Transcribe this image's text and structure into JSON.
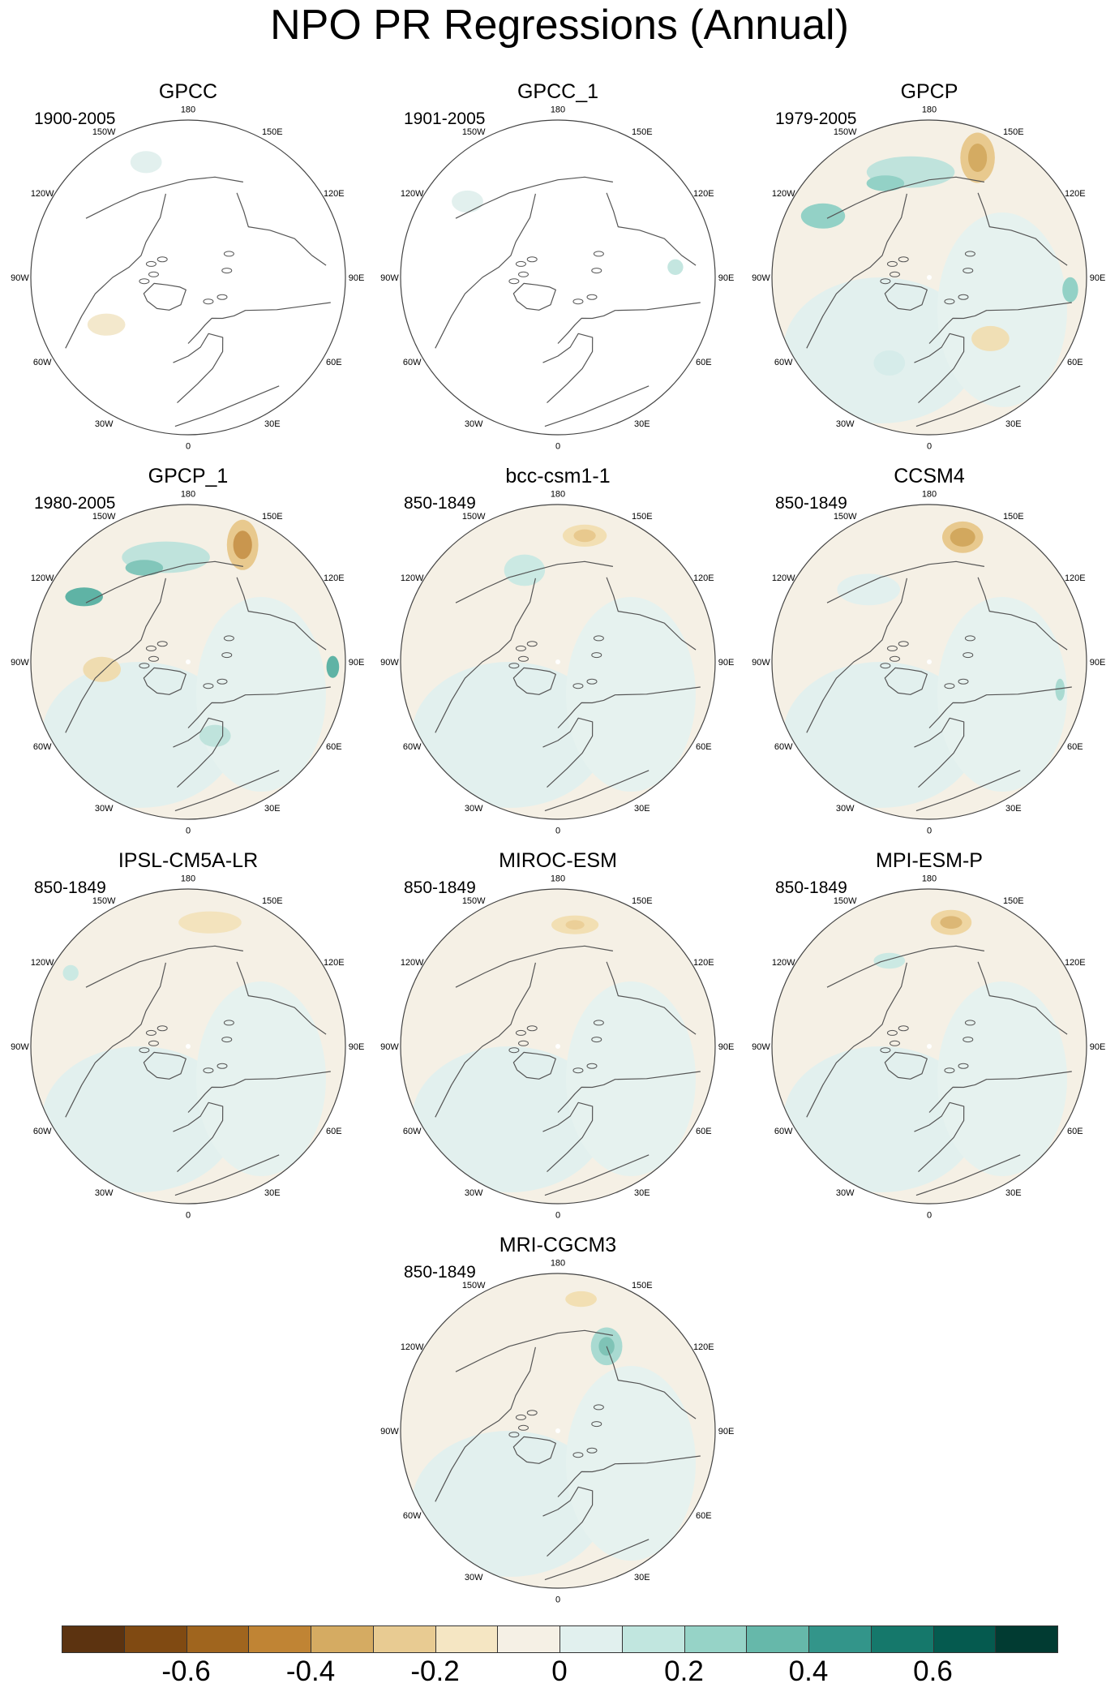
{
  "title": "NPO PR Regressions (Annual)",
  "panels": [
    {
      "name": "GPCC",
      "period": "1900-2005",
      "type": "land",
      "blobs": [
        {
          "lon": 200,
          "r": 0.78,
          "rx": 0.1,
          "ry": 0.07,
          "color": "#e2f0ee"
        },
        {
          "lon": 300,
          "r": 0.6,
          "rx": 0.12,
          "ry": 0.07,
          "color": "#f3e8cc"
        }
      ]
    },
    {
      "name": "GPCC_1",
      "period": "1901-2005",
      "type": "land",
      "blobs": [
        {
          "lon": 230,
          "r": 0.75,
          "rx": 0.1,
          "ry": 0.07,
          "color": "#e2f0ee"
        },
        {
          "lon": 95,
          "r": 0.75,
          "rx": 0.05,
          "ry": 0.05,
          "color": "#c4e6e0"
        }
      ]
    },
    {
      "name": "GPCP",
      "period": "1979-2005",
      "type": "full",
      "blobs": [
        {
          "lon": 158,
          "r": 0.82,
          "rx": 0.11,
          "ry": 0.16,
          "color": "#e8c98e"
        },
        {
          "lon": 158,
          "r": 0.82,
          "rx": 0.06,
          "ry": 0.09,
          "color": "#d4ab62"
        },
        {
          "lon": 190,
          "r": 0.68,
          "rx": 0.28,
          "ry": 0.1,
          "color": "#bfe3dc"
        },
        {
          "lon": 205,
          "r": 0.66,
          "rx": 0.12,
          "ry": 0.05,
          "color": "#93d1c6"
        },
        {
          "lon": 240,
          "r": 0.78,
          "rx": 0.14,
          "ry": 0.08,
          "color": "#93d1c6"
        },
        {
          "lon": 85,
          "r": 0.9,
          "rx": 0.05,
          "ry": 0.08,
          "color": "#93d1c6"
        },
        {
          "lon": 45,
          "r": 0.55,
          "rx": 0.12,
          "ry": 0.08,
          "color": "#f0dfb5"
        },
        {
          "lon": 335,
          "r": 0.6,
          "rx": 0.1,
          "ry": 0.08,
          "color": "#d6ecea"
        }
      ]
    },
    {
      "name": "GPCP_1",
      "period": "1980-2005",
      "type": "full",
      "blobs": [
        {
          "lon": 155,
          "r": 0.82,
          "rx": 0.1,
          "ry": 0.16,
          "color": "#e8c98e"
        },
        {
          "lon": 155,
          "r": 0.82,
          "rx": 0.06,
          "ry": 0.09,
          "color": "#c9964e"
        },
        {
          "lon": 192,
          "r": 0.68,
          "rx": 0.28,
          "ry": 0.1,
          "color": "#bfe3dc"
        },
        {
          "lon": 205,
          "r": 0.66,
          "rx": 0.12,
          "ry": 0.05,
          "color": "#82c6ba"
        },
        {
          "lon": 238,
          "r": 0.78,
          "rx": 0.12,
          "ry": 0.06,
          "color": "#5fb3a5"
        },
        {
          "lon": 88,
          "r": 0.92,
          "rx": 0.04,
          "ry": 0.07,
          "color": "#5fb3a5"
        },
        {
          "lon": 275,
          "r": 0.55,
          "rx": 0.12,
          "ry": 0.08,
          "color": "#efdcb0"
        },
        {
          "lon": 20,
          "r": 0.5,
          "rx": 0.1,
          "ry": 0.07,
          "color": "#bfe3dc"
        }
      ]
    },
    {
      "name": "bcc-csm1-1",
      "period": "850-1849",
      "type": "full",
      "blobs": [
        {
          "lon": 168,
          "r": 0.82,
          "rx": 0.14,
          "ry": 0.07,
          "color": "#f2dfb3"
        },
        {
          "lon": 168,
          "r": 0.82,
          "rx": 0.07,
          "ry": 0.04,
          "color": "#e8c98e"
        },
        {
          "lon": 200,
          "r": 0.62,
          "rx": 0.13,
          "ry": 0.1,
          "color": "#cbe9e3"
        },
        {
          "lon": 300,
          "r": 0.5,
          "rx": 0.2,
          "ry": 0.15,
          "color": "#e2f0ee"
        }
      ]
    },
    {
      "name": "CCSM4",
      "period": "850-1849",
      "type": "full",
      "blobs": [
        {
          "lon": 165,
          "r": 0.82,
          "rx": 0.13,
          "ry": 0.1,
          "color": "#e8c98e"
        },
        {
          "lon": 165,
          "r": 0.82,
          "rx": 0.08,
          "ry": 0.06,
          "color": "#d2a85e"
        },
        {
          "lon": 220,
          "r": 0.6,
          "rx": 0.2,
          "ry": 0.1,
          "color": "#e2f0ee"
        },
        {
          "lon": 78,
          "r": 0.85,
          "rx": 0.03,
          "ry": 0.07,
          "color": "#a9dad1"
        }
      ]
    },
    {
      "name": "IPSL-CM5A-LR",
      "period": "850-1849",
      "type": "full",
      "blobs": [
        {
          "lon": 170,
          "r": 0.8,
          "rx": 0.2,
          "ry": 0.07,
          "color": "#f3e3bd"
        },
        {
          "lon": 238,
          "r": 0.88,
          "rx": 0.05,
          "ry": 0.05,
          "color": "#cbe9e3"
        },
        {
          "lon": 300,
          "r": 0.4,
          "rx": 0.25,
          "ry": 0.18,
          "color": "#e2f0ee"
        }
      ]
    },
    {
      "name": "MIROC-ESM",
      "period": "850-1849",
      "type": "full",
      "blobs": [
        {
          "lon": 172,
          "r": 0.78,
          "rx": 0.15,
          "ry": 0.06,
          "color": "#f2dfb3"
        },
        {
          "lon": 172,
          "r": 0.78,
          "rx": 0.06,
          "ry": 0.03,
          "color": "#ebcf98"
        },
        {
          "lon": 300,
          "r": 0.4,
          "rx": 0.25,
          "ry": 0.18,
          "color": "#e2f0ee"
        }
      ]
    },
    {
      "name": "MPI-ESM-P",
      "period": "850-1849",
      "type": "full",
      "blobs": [
        {
          "lon": 170,
          "r": 0.8,
          "rx": 0.13,
          "ry": 0.08,
          "color": "#efd6a2"
        },
        {
          "lon": 170,
          "r": 0.8,
          "rx": 0.07,
          "ry": 0.04,
          "color": "#dcb775"
        },
        {
          "lon": 205,
          "r": 0.6,
          "rx": 0.1,
          "ry": 0.05,
          "color": "#cbe9e3"
        },
        {
          "lon": 300,
          "r": 0.45,
          "rx": 0.22,
          "ry": 0.16,
          "color": "#e2f0ee"
        }
      ]
    },
    {
      "name": "MRI-CGCM3",
      "period": "850-1849",
      "type": "full",
      "blobs": [
        {
          "lon": 170,
          "r": 0.85,
          "rx": 0.1,
          "ry": 0.05,
          "color": "#f2dfb3"
        },
        {
          "lon": 150,
          "r": 0.62,
          "rx": 0.1,
          "ry": 0.12,
          "color": "#a9dad1"
        },
        {
          "lon": 150,
          "r": 0.62,
          "rx": 0.05,
          "ry": 0.06,
          "color": "#7fc3b6"
        },
        {
          "lon": 300,
          "r": 0.45,
          "rx": 0.25,
          "ry": 0.2,
          "color": "#e2f0ee"
        }
      ]
    }
  ],
  "lon_labels": [
    "180",
    "150E",
    "120E",
    "90E",
    "60E",
    "30E",
    "0",
    "30W",
    "60W",
    "90W",
    "120W",
    "150W"
  ],
  "colorbar": {
    "colors": [
      "#5c3310",
      "#804a12",
      "#a0651e",
      "#c08434",
      "#d5ab62",
      "#e8cb92",
      "#f5e6c3",
      "#f5f0e5",
      "#e1f0ee",
      "#c1e6df",
      "#96d3c7",
      "#66b8aa",
      "#33958a",
      "#15786b",
      "#055a4f",
      "#013b32"
    ],
    "tick_values": [
      "-0.6",
      "-0.4",
      "-0.2",
      "0",
      "0.2",
      "0.4",
      "0.6"
    ]
  }
}
